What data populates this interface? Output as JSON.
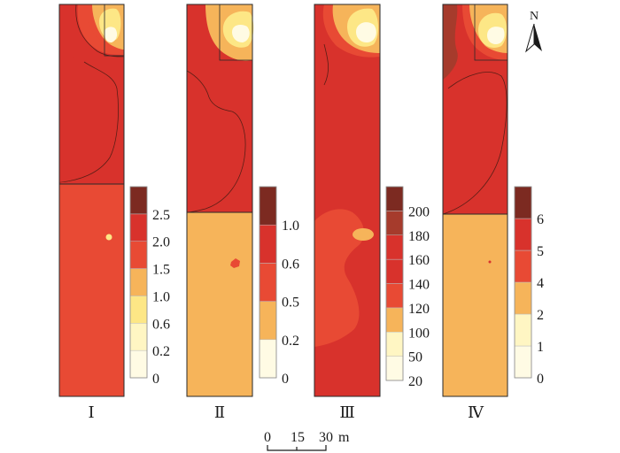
{
  "palette": {
    "c0": "#fffbe4",
    "c1": "#fff6c3",
    "c2": "#fde786",
    "c3": "#f6b45a",
    "c4": "#e84a34",
    "c5": "#d8322c",
    "c6": "#a63b2c",
    "c7": "#7c2a21",
    "outline": "#2a2a2a"
  },
  "maps": [
    {
      "id": "I",
      "label": "Ⅰ",
      "legend": {
        "ticks": [
          "0",
          "0.2",
          "0.6",
          "1.0",
          "1.5",
          "2.0",
          "2.5"
        ],
        "colors": [
          "c0",
          "c1",
          "c2",
          "c3",
          "c4",
          "c5",
          "c7"
        ]
      },
      "top_color": "c5",
      "bottom_color": "c4"
    },
    {
      "id": "II",
      "label": "Ⅱ",
      "legend": {
        "ticks": [
          "0",
          "0.2",
          "0.5",
          "0.6",
          "1.0"
        ],
        "colors": [
          "c0",
          "c3",
          "c4",
          "c5",
          "c7"
        ]
      },
      "top_color": "c5",
      "bottom_color": "c3"
    },
    {
      "id": "III",
      "label": "Ⅲ",
      "legend": {
        "ticks": [
          "20",
          "50",
          "100",
          "120",
          "140",
          "160",
          "180",
          "200"
        ],
        "colors": [
          "c0",
          "c1",
          "c3",
          "c4",
          "c5",
          "c5",
          "c6",
          "c7"
        ]
      },
      "top_color": "c5",
      "bottom_color": "c4"
    },
    {
      "id": "IV",
      "label": "Ⅳ",
      "legend": {
        "ticks": [
          "0",
          "1",
          "2",
          "4",
          "5",
          "6"
        ],
        "colors": [
          "c0",
          "c1",
          "c3",
          "c4",
          "c5",
          "c7"
        ]
      },
      "top_color": "c5",
      "bottom_color": "c3"
    }
  ],
  "scale_bar": {
    "ticks": [
      "0",
      "15",
      "30"
    ],
    "unit": "m"
  },
  "north_arrow": {
    "label": "N"
  }
}
